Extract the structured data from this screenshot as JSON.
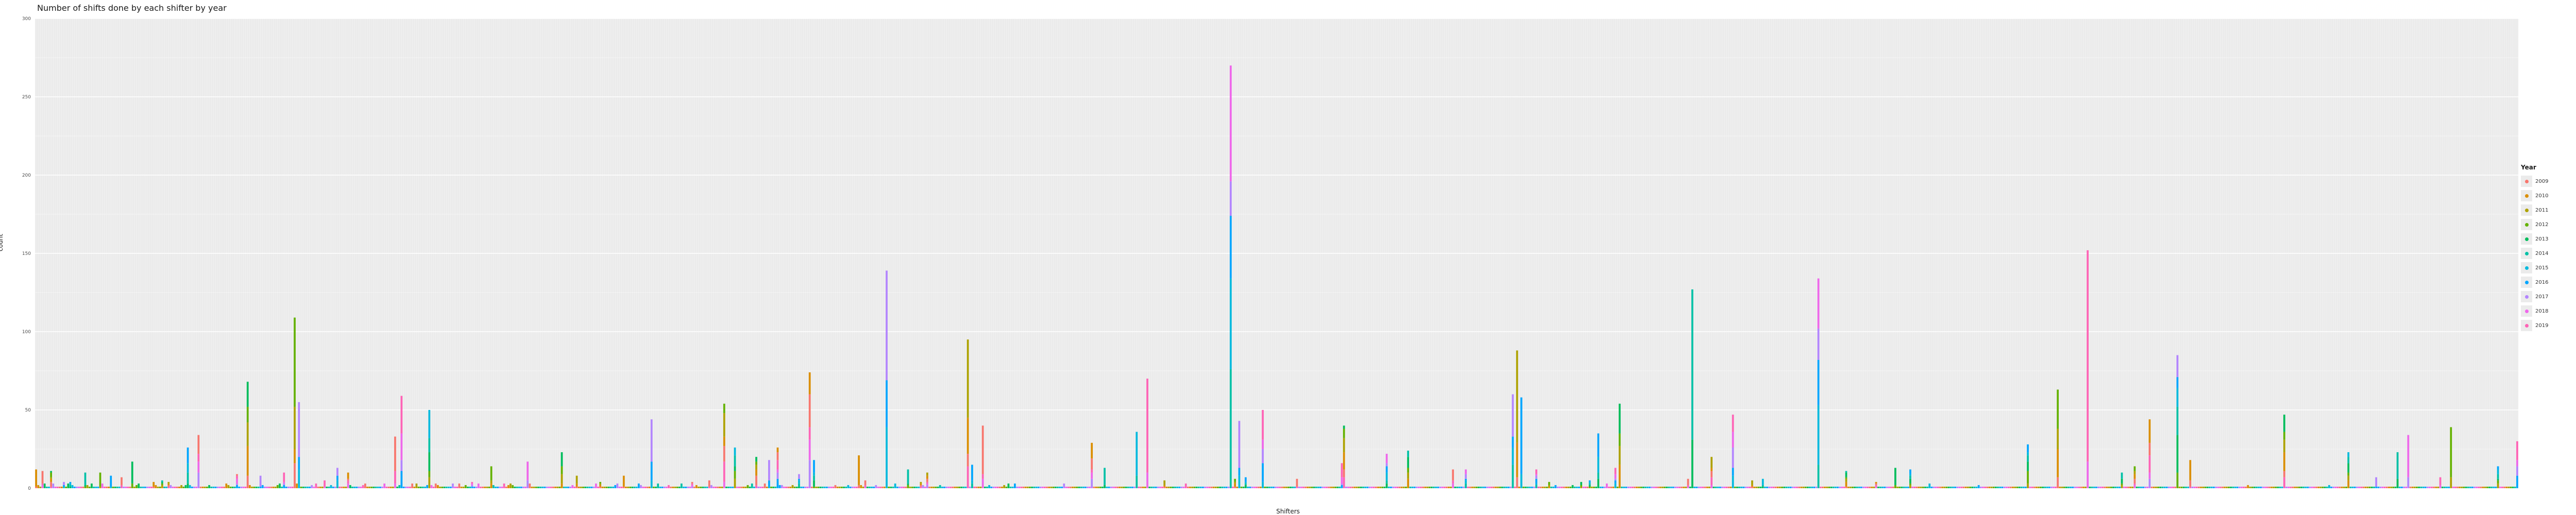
{
  "chart_data": {
    "type": "bar",
    "stacked": true,
    "title": "Number of shifts done by each shifter by year",
    "xlabel": "Shifters",
    "ylabel": "count",
    "ylim": [
      0,
      300
    ],
    "yticks": [
      0,
      50,
      100,
      150,
      200,
      250,
      300
    ],
    "grid": true,
    "legend": {
      "title": "Year",
      "position": "right"
    },
    "years": [
      "2009",
      "2010",
      "2011",
      "2012",
      "2013",
      "2014",
      "2015",
      "2016",
      "2017",
      "2018",
      "2019"
    ],
    "colors": [
      "#F8766D",
      "#DB8E00",
      "#AEA200",
      "#64B200",
      "#00BD5C",
      "#00C1A7",
      "#00BADE",
      "#00A6FF",
      "#B385FF",
      "#EF67EB",
      "#FF63B6"
    ],
    "totals": [
      12,
      2,
      1,
      11,
      3,
      1,
      1,
      11,
      3,
      1,
      1,
      1,
      1,
      4,
      1,
      3,
      4,
      2,
      1,
      1,
      1,
      1,
      1,
      10,
      2,
      1,
      3,
      1,
      1,
      1,
      10,
      3,
      1,
      1,
      1,
      8,
      1,
      1,
      1,
      1,
      7,
      1,
      1,
      1,
      1,
      17,
      1,
      2,
      3,
      1,
      1,
      1,
      1,
      1,
      1,
      4,
      2,
      1,
      1,
      5,
      1,
      1,
      4,
      2,
      1,
      1,
      1,
      1,
      2,
      1,
      2,
      26,
      2,
      1,
      1,
      1,
      34,
      1,
      1,
      1,
      1,
      2,
      1,
      1,
      1,
      1,
      1,
      1,
      1,
      3,
      2,
      1,
      1,
      1,
      9,
      1,
      1,
      1,
      1,
      68,
      2,
      1,
      1,
      1,
      1,
      8,
      2,
      1,
      1,
      1,
      1,
      1,
      1,
      2,
      3,
      1,
      10,
      1,
      1,
      1,
      1,
      109,
      3,
      55,
      1,
      1,
      1,
      1,
      1,
      2,
      1,
      3,
      1,
      1,
      1,
      5,
      1,
      1,
      2,
      1,
      1,
      13,
      1,
      1,
      1,
      1,
      10,
      2,
      1,
      1,
      1,
      1,
      1,
      2,
      3,
      1,
      1,
      1,
      1,
      1,
      1,
      1,
      1,
      3,
      1,
      1,
      1,
      1,
      33,
      1,
      2,
      59,
      1,
      1,
      1,
      1,
      3,
      1,
      3,
      1,
      1,
      1,
      1,
      2,
      50,
      2,
      1,
      3,
      2,
      1,
      1,
      1,
      1,
      1,
      1,
      3,
      1,
      1,
      3,
      1,
      1,
      2,
      1,
      1,
      4,
      1,
      1,
      3,
      1,
      1,
      1,
      1,
      1,
      14,
      2,
      1,
      1,
      1,
      1,
      3,
      1,
      2,
      3,
      2,
      1,
      1,
      1,
      1,
      1,
      1,
      17,
      3,
      1,
      1,
      1,
      1,
      1,
      1,
      1,
      1,
      1,
      1,
      1,
      1,
      1,
      1,
      23,
      1,
      1,
      1,
      1,
      2,
      1,
      8,
      1,
      1,
      1,
      1,
      1,
      1,
      1,
      1,
      3,
      1,
      4,
      1,
      1,
      1,
      1,
      1,
      1,
      2,
      3,
      1,
      1,
      8,
      1,
      1,
      1,
      1,
      1,
      1,
      3,
      2,
      1,
      1,
      1,
      1,
      44,
      1,
      1,
      3,
      1,
      1,
      1,
      1,
      2,
      1,
      1,
      1,
      1,
      1,
      3,
      1,
      1,
      1,
      1,
      4,
      1,
      2,
      1,
      1,
      1,
      1,
      1,
      5,
      2,
      1,
      1,
      1,
      1,
      1,
      54,
      1,
      1,
      1,
      1,
      26,
      1,
      1,
      1,
      1,
      1,
      2,
      1,
      3,
      1,
      20,
      1,
      1,
      1,
      3,
      1,
      18,
      1,
      1,
      1,
      26,
      2,
      2,
      1,
      1,
      1,
      1,
      2,
      1,
      1,
      9,
      1,
      1,
      1,
      1,
      74,
      1,
      18,
      1,
      1,
      1,
      1,
      1,
      1,
      1,
      1,
      1,
      2,
      1,
      1,
      1,
      1,
      1,
      2,
      1,
      1,
      1,
      1,
      21,
      2,
      1,
      5,
      1,
      1,
      1,
      1,
      2,
      1,
      1,
      1,
      1,
      139,
      1,
      1,
      1,
      3,
      1,
      1,
      1,
      1,
      1,
      12,
      1,
      1,
      1,
      1,
      1,
      4,
      2,
      1,
      10,
      1,
      1,
      1,
      1,
      1,
      2,
      1,
      1,
      1,
      1,
      1,
      1,
      1,
      1,
      1,
      1,
      1,
      1,
      95,
      1,
      15,
      1,
      1,
      1,
      1,
      40,
      1,
      1,
      2,
      1,
      1,
      1,
      1,
      1,
      1,
      2,
      1,
      3,
      1,
      1,
      3,
      1,
      1,
      1,
      1,
      1,
      1,
      1,
      1,
      1,
      1,
      1,
      1,
      1,
      1,
      1,
      1,
      1,
      1,
      1,
      1,
      1,
      1,
      3,
      1,
      1,
      1,
      1,
      1,
      1,
      1,
      1,
      1,
      1,
      1,
      1,
      29,
      1,
      1,
      1,
      1,
      1,
      13,
      1,
      1,
      1,
      1,
      1,
      1,
      1,
      1,
      1,
      1,
      1,
      1,
      1,
      1,
      36,
      1,
      1,
      1,
      1,
      70,
      1,
      1,
      1,
      1,
      1,
      1,
      1,
      5,
      1,
      1,
      1,
      1,
      1,
      1,
      1,
      1,
      1,
      3,
      1,
      1,
      1,
      1,
      1,
      1,
      1,
      1,
      1,
      1,
      1,
      1,
      1,
      1,
      1,
      1,
      1,
      1,
      1,
      1,
      270,
      1,
      6,
      1,
      43,
      1,
      1,
      7,
      1,
      1,
      1,
      1,
      1,
      1,
      1,
      50,
      1,
      1,
      1,
      1,
      1,
      1,
      1,
      1,
      1,
      1,
      1,
      1,
      1,
      1,
      1,
      6,
      1,
      1,
      1,
      1,
      1,
      1,
      1,
      1,
      1,
      1,
      1,
      1,
      1,
      1,
      1,
      1,
      1,
      1,
      1,
      1,
      16,
      40,
      1,
      1,
      1,
      1,
      1,
      1,
      1,
      1,
      1,
      1,
      1,
      1,
      1,
      1,
      1,
      1,
      1,
      1,
      1,
      22,
      1,
      1,
      1,
      1,
      1,
      1,
      1,
      1,
      1,
      24,
      1,
      1,
      1,
      1,
      1,
      1,
      1,
      1,
      1,
      1,
      1,
      1,
      1,
      1,
      1,
      1,
      1,
      1,
      1,
      1,
      12,
      1,
      1,
      1,
      1,
      1,
      12,
      1,
      1,
      1,
      1,
      1,
      1,
      1,
      1,
      1,
      1,
      1,
      1,
      1,
      1,
      1,
      1,
      1,
      1,
      1,
      1,
      1,
      60,
      1,
      88,
      1,
      58,
      1,
      1,
      1,
      1,
      1,
      1,
      12,
      1,
      1,
      1,
      1,
      1,
      4,
      1,
      1,
      2,
      1,
      1,
      1,
      1,
      1,
      1,
      1,
      2,
      1,
      1,
      1,
      4,
      1,
      1,
      1,
      5,
      1,
      1,
      1,
      35,
      1,
      1,
      1,
      3,
      1,
      1,
      1,
      13,
      1,
      54,
      1,
      1,
      1,
      1,
      1,
      1,
      1,
      1,
      1,
      1,
      1,
      1,
      1,
      1,
      1,
      1,
      1,
      1,
      1,
      1,
      1,
      1,
      1,
      1,
      1,
      1,
      1,
      1,
      1,
      1,
      1,
      6,
      1,
      127,
      1,
      1,
      1,
      1,
      1,
      1,
      1,
      1,
      20,
      1,
      1,
      1,
      1,
      1,
      1,
      1,
      1,
      1,
      47,
      1,
      1,
      1,
      1,
      1,
      1,
      1,
      1,
      5,
      1,
      1,
      1,
      1,
      6,
      1,
      1,
      1,
      1,
      1,
      1,
      1,
      1,
      1,
      1,
      1,
      1,
      1,
      1,
      1,
      1,
      1,
      1,
      1,
      1,
      1,
      1,
      1,
      1,
      1,
      134,
      1,
      1,
      1,
      1,
      1,
      1,
      1,
      1,
      1,
      1,
      1,
      1,
      11,
      1,
      1,
      1,
      1,
      1,
      1,
      1,
      1,
      1,
      1,
      1,
      1,
      1,
      4,
      1,
      1,
      1,
      1,
      1,
      1,
      1,
      1,
      13,
      1,
      1,
      1,
      1,
      1,
      1,
      12,
      1,
      1,
      1,
      1,
      1,
      1,
      1,
      1,
      3,
      1,
      1,
      1,
      1,
      1,
      1,
      1,
      1,
      1,
      1,
      1,
      1,
      1,
      1,
      1,
      1,
      1,
      1,
      1,
      1,
      1,
      1,
      2,
      1,
      1,
      1,
      1,
      1,
      1,
      1,
      1,
      1,
      1,
      1,
      1,
      1,
      1,
      1,
      1,
      1,
      1,
      1,
      1,
      1,
      1,
      28,
      1,
      1,
      1,
      1,
      1,
      1,
      1,
      1,
      1,
      1,
      1,
      1,
      1,
      63,
      1,
      1,
      1,
      1,
      1,
      1,
      1,
      1,
      1,
      1,
      1,
      1,
      1,
      152,
      1,
      1,
      1,
      1,
      1,
      1,
      1,
      1,
      1,
      1,
      1,
      1,
      1,
      1,
      1,
      10,
      1,
      1,
      1,
      1,
      1,
      14,
      1,
      1,
      1,
      1,
      1,
      1,
      44,
      1,
      1,
      1,
      1,
      1,
      1,
      1,
      1,
      1,
      1,
      1,
      1,
      85,
      1,
      1,
      1,
      1,
      1,
      18,
      1,
      1,
      1,
      1,
      1,
      1,
      1,
      1,
      1,
      1,
      1,
      1,
      1,
      1,
      1,
      1,
      1,
      1,
      1,
      1,
      1,
      1,
      1,
      1,
      1,
      1,
      2,
      1,
      1,
      1,
      1,
      1,
      1,
      1,
      1,
      1,
      1,
      1,
      1,
      1,
      1,
      1,
      1,
      47,
      1,
      1,
      1,
      1,
      1,
      1,
      1,
      1,
      1,
      1,
      1,
      1,
      1,
      1,
      1,
      1,
      1,
      1,
      1,
      1,
      2,
      1,
      1,
      1,
      1,
      1,
      1,
      1,
      1,
      23,
      1,
      1,
      1,
      1,
      1,
      1,
      1,
      1,
      1,
      1,
      1,
      1,
      7,
      1,
      1,
      1,
      1,
      1,
      1,
      1,
      1,
      1,
      23,
      1,
      1,
      1,
      1,
      34,
      1,
      1,
      1,
      1,
      1,
      1,
      1,
      1,
      1,
      1,
      1,
      1,
      1,
      1,
      7,
      1,
      1,
      1,
      1,
      39,
      1,
      1,
      1,
      1,
      1,
      1,
      1,
      1,
      1,
      1,
      1,
      1,
      1,
      1,
      1,
      1,
      1,
      1,
      1,
      1,
      1,
      14,
      1,
      1,
      1,
      1,
      1,
      1,
      1,
      1,
      30
    ]
  }
}
